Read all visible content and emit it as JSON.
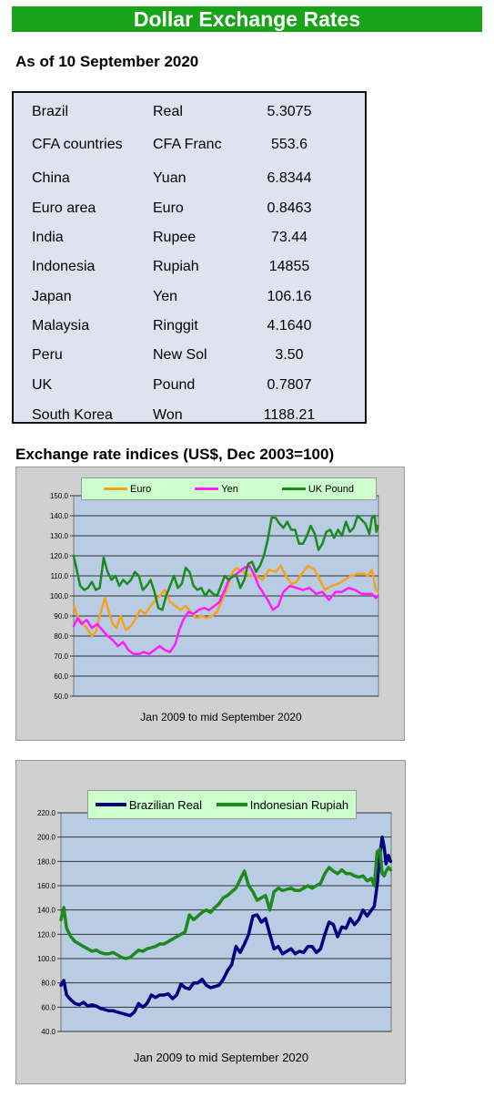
{
  "title": "Dollar Exchange Rates",
  "as_of": "As of 10 September 2020",
  "rates_table": [
    {
      "country": "Brazil",
      "currency": "Real",
      "rate": "5.3075"
    },
    {
      "country": "CFA countries",
      "currency": "CFA Franc",
      "rate": "553.6"
    },
    {
      "country": "China",
      "currency": "Yuan",
      "rate": "6.8344"
    },
    {
      "country": "Euro area",
      "currency": "Euro",
      "rate": "0.8463"
    },
    {
      "country": "India",
      "currency": "Rupee",
      "rate": "73.44"
    },
    {
      "country": "Indonesia",
      "currency": "Rupiah",
      "rate": "14855"
    },
    {
      "country": "Japan",
      "currency": "Yen",
      "rate": "106.16"
    },
    {
      "country": "Malaysia",
      "currency": "Ringgit",
      "rate": "4.1640"
    },
    {
      "country": "Peru",
      "currency": "New Sol",
      "rate": "3.50"
    },
    {
      "country": "UK",
      "currency": "Pound",
      "rate": "0.7807"
    },
    {
      "country": "South Korea",
      "currency": "Won",
      "rate": "1188.21"
    }
  ],
  "indices_heading": "Exchange rate indices (US$, Dec 2003=100)",
  "colors": {
    "euro": "#f7a21b",
    "yen": "#ff1aff",
    "pound": "#1c8a1c",
    "real": "#000080",
    "rupiah": "#1c8a1c",
    "banner": "#18a418",
    "plot_bg": "#b8cce4"
  },
  "chart_data": [
    {
      "type": "line",
      "ylim": [
        50,
        150
      ],
      "yticks": [
        "50.0",
        "60.0",
        "70.0",
        "80.0",
        "90.0",
        "100.0",
        "110.0",
        "120.0",
        "130.0",
        "140.0",
        "150.0"
      ],
      "xrange": [
        2009.0,
        2020.7
      ],
      "xlabel": "Jan 2009  to mid September 2020",
      "legend": "top",
      "grid": true,
      "series": [
        {
          "name": "Euro",
          "color": "#f7a21b",
          "x": [
            2009.0,
            2009.15,
            2009.3,
            2009.5,
            2009.7,
            2009.85,
            2010.0,
            2010.2,
            2010.35,
            2010.5,
            2010.65,
            2010.8,
            2011.0,
            2011.2,
            2011.35,
            2011.55,
            2011.75,
            2011.95,
            2012.15,
            2012.3,
            2012.5,
            2012.7,
            2012.9,
            2013.1,
            2013.3,
            2013.5,
            2013.7,
            2013.9,
            2014.1,
            2014.3,
            2014.5,
            2014.7,
            2014.9,
            2015.0,
            2015.1,
            2015.25,
            2015.5,
            2015.75,
            2016.0,
            2016.25,
            2016.5,
            2016.75,
            2016.95,
            2017.15,
            2017.35,
            2017.55,
            2017.75,
            2018.0,
            2018.25,
            2018.45,
            2018.65,
            2018.9,
            2019.15,
            2019.4,
            2019.65,
            2019.9,
            2020.15,
            2020.3,
            2020.45,
            2020.6,
            2020.68
          ],
          "values": [
            95,
            90,
            87,
            84,
            80,
            82,
            90,
            99,
            92,
            86,
            84,
            90,
            83,
            85,
            88,
            93,
            91,
            95,
            98,
            100,
            103,
            97,
            95,
            93,
            95,
            92,
            89,
            90,
            89,
            90,
            92,
            98,
            104,
            108,
            112,
            114,
            112,
            110,
            110,
            108,
            113,
            112,
            115,
            110,
            106,
            107,
            111,
            115,
            113,
            108,
            103,
            105,
            106,
            108,
            110,
            111,
            111,
            110,
            113,
            103,
            102
          ]
        },
        {
          "name": "Yen",
          "color": "#ff1aff",
          "x": [
            2009.0,
            2009.15,
            2009.3,
            2009.5,
            2009.7,
            2009.9,
            2010.1,
            2010.3,
            2010.5,
            2010.7,
            2010.9,
            2011.1,
            2011.3,
            2011.5,
            2011.7,
            2011.9,
            2012.1,
            2012.3,
            2012.5,
            2012.7,
            2012.9,
            2013.05,
            2013.2,
            2013.4,
            2013.6,
            2013.8,
            2014.0,
            2014.2,
            2014.4,
            2014.6,
            2014.8,
            2014.95,
            2015.15,
            2015.35,
            2015.55,
            2015.75,
            2015.95,
            2016.1,
            2016.25,
            2016.45,
            2016.65,
            2016.85,
            2017.05,
            2017.3,
            2017.55,
            2017.8,
            2018.05,
            2018.3,
            2018.55,
            2018.8,
            2019.05,
            2019.3,
            2019.55,
            2019.8,
            2020.05,
            2020.25,
            2020.45,
            2020.6,
            2020.68
          ],
          "values": [
            85,
            89,
            86,
            88,
            84,
            86,
            83,
            80,
            78,
            75,
            77,
            73,
            71,
            71,
            72,
            71,
            73,
            75,
            73,
            72,
            76,
            83,
            88,
            92,
            91,
            93,
            94,
            93,
            95,
            97,
            103,
            108,
            110,
            112,
            114,
            115,
            110,
            105,
            102,
            98,
            93,
            95,
            102,
            105,
            104,
            103,
            104,
            101,
            102,
            98,
            102,
            102,
            104,
            103,
            101,
            101,
            101,
            99,
            100
          ]
        },
        {
          "name": "UK Pound",
          "color": "#1c8a1c",
          "x": [
            2009.0,
            2009.1,
            2009.25,
            2009.4,
            2009.55,
            2009.7,
            2009.85,
            2010.0,
            2010.15,
            2010.3,
            2010.45,
            2010.6,
            2010.75,
            2010.9,
            2011.05,
            2011.2,
            2011.35,
            2011.5,
            2011.65,
            2011.8,
            2011.95,
            2012.1,
            2012.25,
            2012.4,
            2012.55,
            2012.7,
            2012.85,
            2013.0,
            2013.15,
            2013.3,
            2013.45,
            2013.6,
            2013.75,
            2013.9,
            2014.05,
            2014.2,
            2014.35,
            2014.5,
            2014.65,
            2014.8,
            2014.95,
            2015.1,
            2015.25,
            2015.4,
            2015.55,
            2015.7,
            2015.85,
            2016.0,
            2016.15,
            2016.3,
            2016.45,
            2016.6,
            2016.75,
            2016.9,
            2017.05,
            2017.2,
            2017.35,
            2017.5,
            2017.65,
            2017.8,
            2017.95,
            2018.1,
            2018.25,
            2018.4,
            2018.55,
            2018.7,
            2018.85,
            2019.0,
            2019.15,
            2019.3,
            2019.45,
            2019.6,
            2019.75,
            2019.9,
            2020.05,
            2020.2,
            2020.35,
            2020.45,
            2020.55,
            2020.62,
            2020.68
          ],
          "values": [
            120,
            114,
            105,
            103,
            104,
            107,
            103,
            104,
            119,
            112,
            108,
            110,
            105,
            108,
            106,
            108,
            112,
            110,
            103,
            105,
            108,
            102,
            94,
            93,
            100,
            105,
            110,
            104,
            106,
            114,
            112,
            105,
            103,
            104,
            100,
            103,
            101,
            100,
            105,
            110,
            108,
            110,
            110,
            104,
            108,
            116,
            117,
            112,
            115,
            120,
            128,
            139,
            139,
            136,
            134,
            137,
            133,
            133,
            126,
            126,
            130,
            135,
            131,
            123,
            126,
            132,
            133,
            129,
            133,
            130,
            137,
            132,
            134,
            140,
            138,
            136,
            131,
            139,
            140,
            132,
            135
          ]
        }
      ]
    },
    {
      "type": "line",
      "ylim": [
        40,
        220
      ],
      "yticks": [
        "40.0",
        "60.0",
        "80.0",
        "100.0",
        "120.0",
        "140.0",
        "160.0",
        "180.0",
        "200.0",
        "220.0"
      ],
      "xrange": [
        2009.0,
        2020.7
      ],
      "xlabel": "Jan 2009  to mid September 2020",
      "legend": "top",
      "grid": true,
      "series": [
        {
          "name": "Brazilian Real",
          "color": "#000080",
          "x": [
            2009.0,
            2009.1,
            2009.2,
            2009.35,
            2009.5,
            2009.65,
            2009.8,
            2009.95,
            2010.1,
            2010.25,
            2010.4,
            2010.55,
            2010.7,
            2010.85,
            2011.0,
            2011.15,
            2011.3,
            2011.45,
            2011.6,
            2011.75,
            2011.9,
            2012.05,
            2012.2,
            2012.35,
            2012.5,
            2012.65,
            2012.8,
            2012.95,
            2013.1,
            2013.25,
            2013.4,
            2013.55,
            2013.7,
            2013.85,
            2014.0,
            2014.15,
            2014.3,
            2014.45,
            2014.6,
            2014.75,
            2014.9,
            2015.05,
            2015.2,
            2015.35,
            2015.5,
            2015.65,
            2015.8,
            2015.95,
            2016.1,
            2016.25,
            2016.4,
            2016.55,
            2016.7,
            2016.85,
            2017.0,
            2017.15,
            2017.3,
            2017.45,
            2017.6,
            2017.75,
            2017.9,
            2018.05,
            2018.2,
            2018.35,
            2018.5,
            2018.65,
            2018.8,
            2018.95,
            2019.1,
            2019.25,
            2019.4,
            2019.55,
            2019.7,
            2019.85,
            2020.0,
            2020.1,
            2020.2,
            2020.3,
            2020.38,
            2020.45,
            2020.52,
            2020.6,
            2020.68
          ],
          "values": [
            78,
            82,
            70,
            66,
            63,
            62,
            64,
            61,
            62,
            61,
            59,
            58,
            57,
            57,
            56,
            55,
            54,
            53,
            56,
            63,
            60,
            63,
            70,
            68,
            70,
            70,
            71,
            67,
            70,
            79,
            76,
            75,
            80,
            80,
            83,
            78,
            76,
            77,
            78,
            83,
            90,
            95,
            110,
            105,
            112,
            120,
            135,
            136,
            130,
            133,
            120,
            108,
            110,
            104,
            106,
            108,
            104,
            106,
            105,
            110,
            110,
            105,
            108,
            120,
            130,
            128,
            118,
            126,
            125,
            133,
            128,
            132,
            140,
            135,
            140,
            143,
            160,
            185,
            200,
            192,
            178,
            185,
            180
          ]
        },
        {
          "name": "Indonesian Rupiah",
          "color": "#1c8a1c",
          "x": [
            2009.0,
            2009.1,
            2009.2,
            2009.35,
            2009.5,
            2009.65,
            2009.8,
            2009.95,
            2010.1,
            2010.25,
            2010.4,
            2010.55,
            2010.7,
            2010.85,
            2011.0,
            2011.15,
            2011.3,
            2011.45,
            2011.6,
            2011.75,
            2011.9,
            2012.05,
            2012.2,
            2012.35,
            2012.5,
            2012.65,
            2012.8,
            2012.95,
            2013.1,
            2013.25,
            2013.4,
            2013.55,
            2013.7,
            2013.85,
            2014.0,
            2014.15,
            2014.3,
            2014.45,
            2014.6,
            2014.75,
            2014.9,
            2015.05,
            2015.2,
            2015.35,
            2015.5,
            2015.65,
            2015.8,
            2015.95,
            2016.1,
            2016.25,
            2016.4,
            2016.55,
            2016.7,
            2016.85,
            2017.0,
            2017.15,
            2017.3,
            2017.45,
            2017.6,
            2017.75,
            2017.9,
            2018.05,
            2018.2,
            2018.35,
            2018.5,
            2018.65,
            2018.8,
            2018.95,
            2019.1,
            2019.25,
            2019.4,
            2019.55,
            2019.7,
            2019.85,
            2020.0,
            2020.1,
            2020.2,
            2020.3,
            2020.38,
            2020.45,
            2020.52,
            2020.6,
            2020.68
          ],
          "values": [
            132,
            142,
            125,
            118,
            114,
            112,
            110,
            108,
            106,
            107,
            105,
            104,
            104,
            105,
            103,
            101,
            100,
            101,
            104,
            107,
            106,
            108,
            109,
            110,
            112,
            112,
            114,
            116,
            118,
            120,
            122,
            136,
            132,
            135,
            138,
            140,
            138,
            142,
            145,
            150,
            152,
            155,
            158,
            165,
            172,
            160,
            155,
            148,
            150,
            152,
            140,
            155,
            158,
            156,
            157,
            158,
            156,
            156,
            158,
            160,
            158,
            160,
            162,
            170,
            175,
            172,
            170,
            173,
            170,
            170,
            168,
            167,
            168,
            164,
            166,
            160,
            188,
            190,
            170,
            168,
            172,
            175,
            173
          ]
        }
      ]
    }
  ]
}
